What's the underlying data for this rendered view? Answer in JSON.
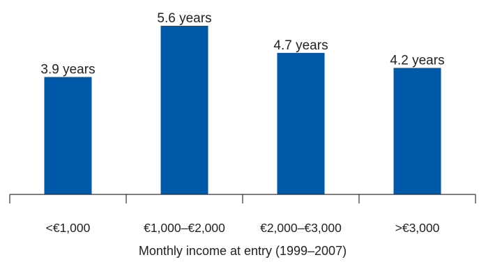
{
  "chart_data": {
    "type": "bar",
    "categories": [
      "<€1,000",
      "€1,000–€2,000",
      "€2,000–€3,000",
      ">€3,000"
    ],
    "values": [
      3.9,
      5.6,
      4.7,
      4.2
    ],
    "data_labels": [
      "3.9 years",
      "5.6 years",
      "4.7 years",
      "4.2 years"
    ],
    "xlabel": "Monthly income at entry (1999–2007)",
    "ylabel": "",
    "title": "",
    "ylim": [
      0,
      5.6
    ],
    "grid": false,
    "legend": "none",
    "colors": {
      "bar": "#0059a8",
      "axis": "#333333",
      "text": "#222222"
    }
  }
}
